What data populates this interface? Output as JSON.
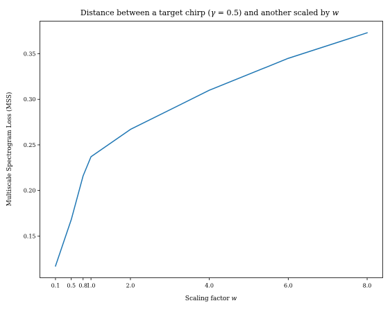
{
  "chart_data": {
    "type": "line",
    "title_prefix": "Distance between a target chirp (",
    "title_gamma": "γ",
    "title_eq": " = 0.5",
    "title_mid": ") and another scaled by ",
    "title_w": "w",
    "xlabel_prefix": "Scaling factor ",
    "xlabel_w": "w",
    "ylabel": "Multiscale Spectrogram Loss (MSS)",
    "x": [
      0.1,
      0.5,
      0.8,
      1.0,
      2.0,
      4.0,
      6.0,
      8.0
    ],
    "y": [
      0.117,
      0.168,
      0.216,
      0.237,
      0.267,
      0.31,
      0.345,
      0.373
    ],
    "xticks": [
      0.1,
      0.5,
      0.8,
      1.0,
      2.0,
      4.0,
      6.0,
      8.0
    ],
    "xtick_labels": [
      "0.1",
      "0.5",
      "0.8",
      "1.0",
      "2.0",
      "4.0",
      "6.0",
      "8.0"
    ],
    "yticks": [
      0.15,
      0.2,
      0.25,
      0.3,
      0.35
    ],
    "ytick_labels": [
      "0.15",
      "0.20",
      "0.25",
      "0.30",
      "0.35"
    ],
    "xlim": [
      -0.295,
      8.395
    ],
    "ylim": [
      0.1042,
      0.3858
    ],
    "grid": false,
    "line_color": "#1f77b4"
  }
}
